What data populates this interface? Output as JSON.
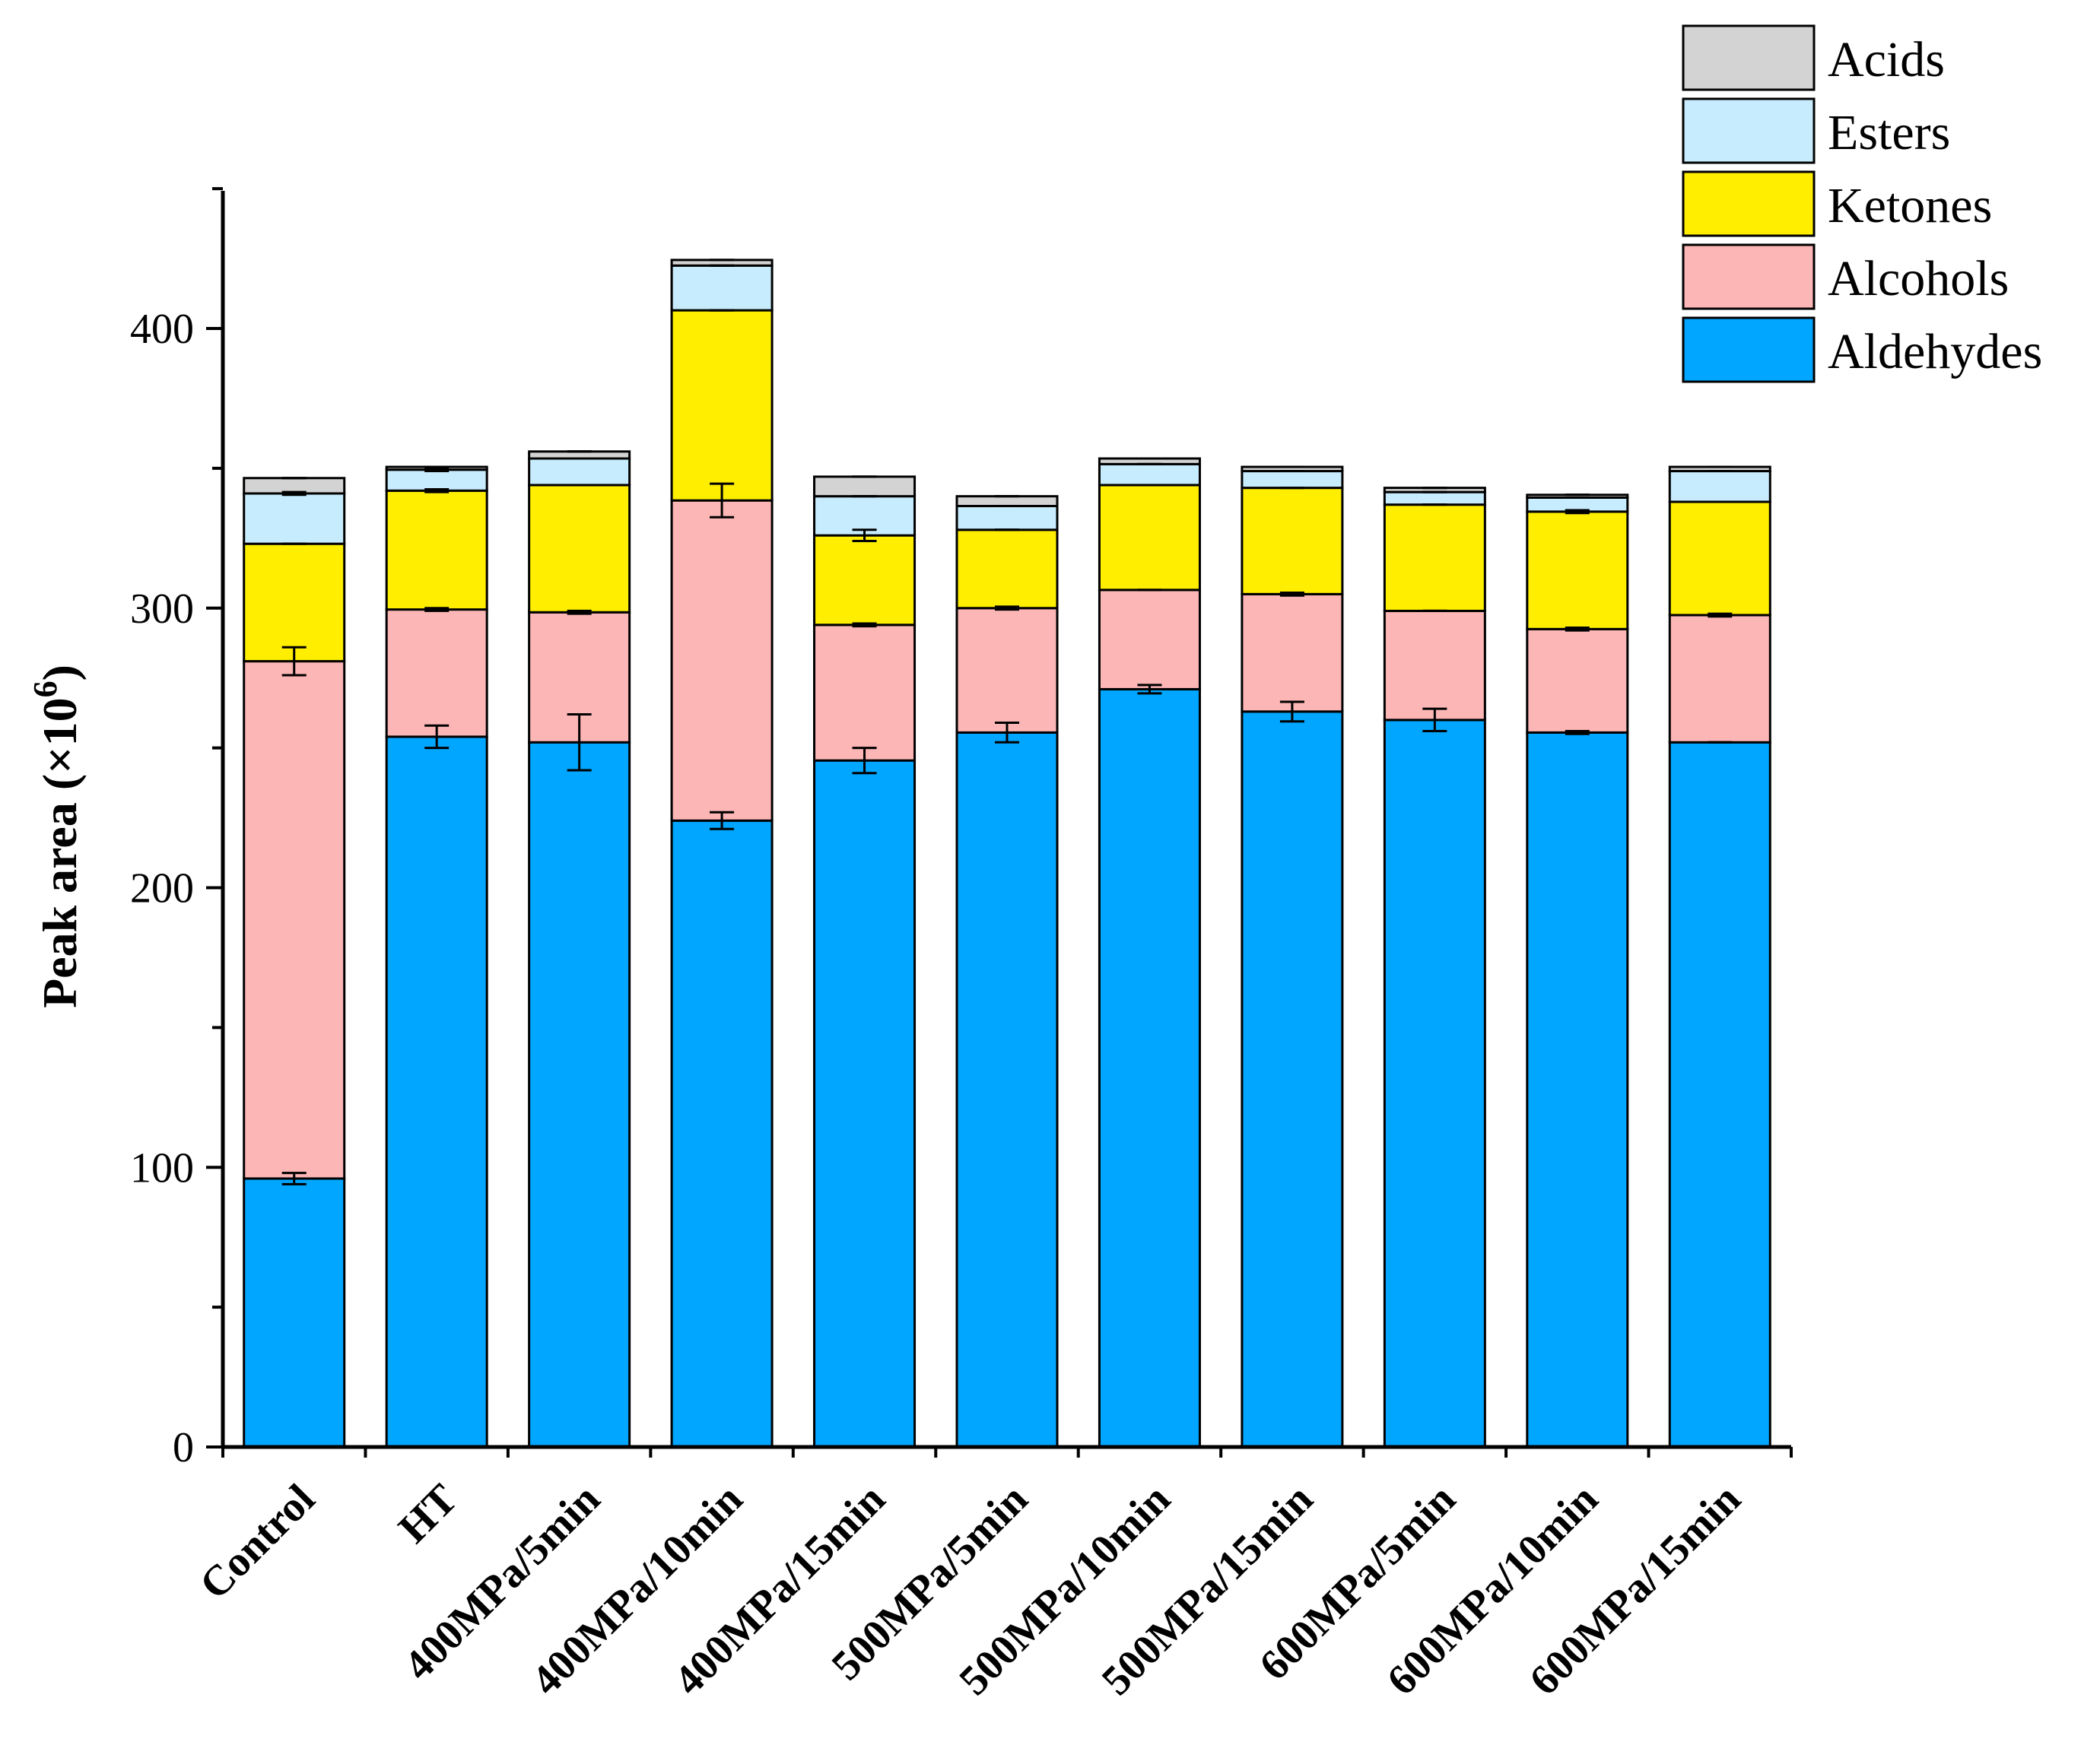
{
  "chart_data": {
    "type": "bar",
    "stacked": true,
    "ylabel": "Peak area (×10",
    "ylabel_superscript": "6",
    "ylabel_suffix": ")",
    "ylim": [
      0,
      450
    ],
    "yticks": [
      0,
      100,
      200,
      300,
      400
    ],
    "grid": false,
    "legend_position": "top-right",
    "categories": [
      "Control",
      "HT",
      "400MPa/5min",
      "400MPa/10min",
      "400MPa/15min",
      "500MPa/5min",
      "500MPa/10min",
      "500MPa/15min",
      "600MPa/5min",
      "600MPa/10min",
      "600MPa/15min"
    ],
    "series": [
      {
        "name": "Aldehydes",
        "color": "#00a6ff",
        "values": [
          96,
          254,
          252,
          224,
          245.5,
          255.5,
          271,
          263,
          260,
          255.5,
          252
        ],
        "errors": [
          2,
          4,
          10,
          3,
          4.5,
          3.5,
          1.5,
          3.5,
          4,
          0.5,
          0
        ]
      },
      {
        "name": "Alcohols",
        "color": "#fdb6b6",
        "values": [
          185,
          45.5,
          46.5,
          114.5,
          48.5,
          44.5,
          35.5,
          42,
          39,
          37,
          45.5
        ],
        "errors": [
          5,
          0.5,
          0.5,
          6,
          0.5,
          0.5,
          0,
          0.5,
          0,
          0.5,
          0.5
        ]
      },
      {
        "name": "Ketones",
        "color": "#ffee00",
        "values": [
          42,
          42.5,
          45.5,
          68,
          32,
          28,
          37.5,
          38,
          38,
          42,
          40.5
        ],
        "errors": [
          0,
          0.5,
          0,
          0,
          2,
          0,
          0,
          0,
          0,
          0.5,
          0
        ]
      },
      {
        "name": "Esters",
        "color": "#c7ecfd",
        "values": [
          18,
          7.5,
          9.5,
          16,
          14,
          8.5,
          7.5,
          6,
          4.5,
          5,
          11
        ],
        "errors": [
          0.5,
          0.5,
          0,
          0,
          0,
          0,
          0,
          0,
          0,
          0,
          0
        ]
      },
      {
        "name": "Acids",
        "color": "#d3d3d3",
        "values": [
          5.5,
          1,
          2.5,
          2,
          7,
          3.5,
          2,
          1.5,
          1.5,
          1,
          1.5
        ],
        "errors": [
          0,
          0,
          0,
          0,
          0,
          0,
          0,
          0,
          0,
          0,
          0
        ]
      }
    ],
    "legend_order": [
      "Acids",
      "Esters",
      "Ketones",
      "Alcohols",
      "Aldehydes"
    ]
  }
}
